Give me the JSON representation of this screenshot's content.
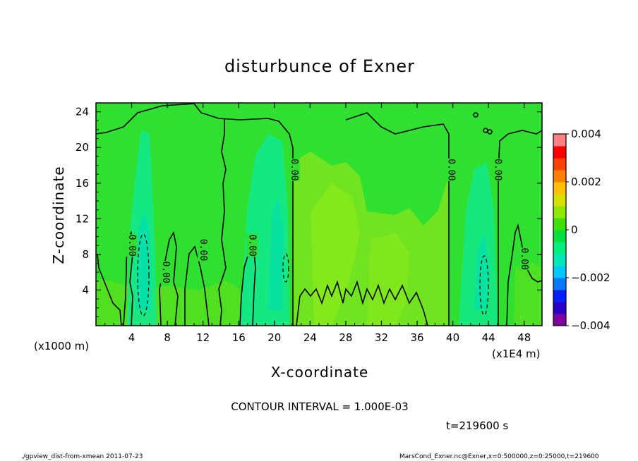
{
  "chart_data": {
    "type": "heatmap",
    "title": "disturbunce of Exner",
    "xlabel": "X-coordinate",
    "ylabel": "Z-coordinate",
    "x_unit_label": "(x1000 m)",
    "x_unit_label_right": "(x1E4 m)",
    "x_ticks": [
      4,
      8,
      12,
      16,
      20,
      24,
      28,
      32,
      36,
      40,
      44,
      48
    ],
    "y_ticks": [
      4,
      8,
      12,
      16,
      20,
      24
    ],
    "xlim": [
      0,
      50
    ],
    "ylim": [
      0,
      25
    ],
    "colorbar": {
      "ticks": [
        0.004,
        0.002,
        0,
        -0.002,
        -0.004
      ],
      "tick_labels": [
        "0.004",
        "0.002",
        "0",
        "−0.002",
        "−0.004"
      ],
      "range": [
        -0.004,
        0.004
      ],
      "colors": [
        "#7f00a0",
        "#2a00c8",
        "#0020ff",
        "#0078ff",
        "#00c8ff",
        "#00e8b8",
        "#00f080",
        "#00e040",
        "#40e000",
        "#90e800",
        "#d8e000",
        "#ffc000",
        "#ff8000",
        "#ff4000",
        "#ff0000",
        "#ff8080"
      ]
    },
    "contour_interval_text": "CONTOUR INTERVAL = 1.000E-03",
    "contour_labels": [
      {
        "text": "0.00",
        "x": 4,
        "z": 9
      },
      {
        "text": "0.00",
        "x": 7.8,
        "z": 6
      },
      {
        "text": "0.00",
        "x": 12,
        "z": 8.5
      },
      {
        "text": "0.00",
        "x": 17.5,
        "z": 9
      },
      {
        "text": "0.00",
        "x": 22.2,
        "z": 17.5
      },
      {
        "text": "0.00",
        "x": 39.8,
        "z": 17.5
      },
      {
        "text": "0.00",
        "x": 45,
        "z": 17.5
      },
      {
        "text": "0.00",
        "x": 48,
        "z": 7.5
      }
    ],
    "time_label": "t=219600  s",
    "footer_left": "./gpview_dist-from-xmean  2011-07-23",
    "footer_right": "MarsCond_Exner.nc@Exner,x=0:500000,z=0:25000,t=219600"
  }
}
